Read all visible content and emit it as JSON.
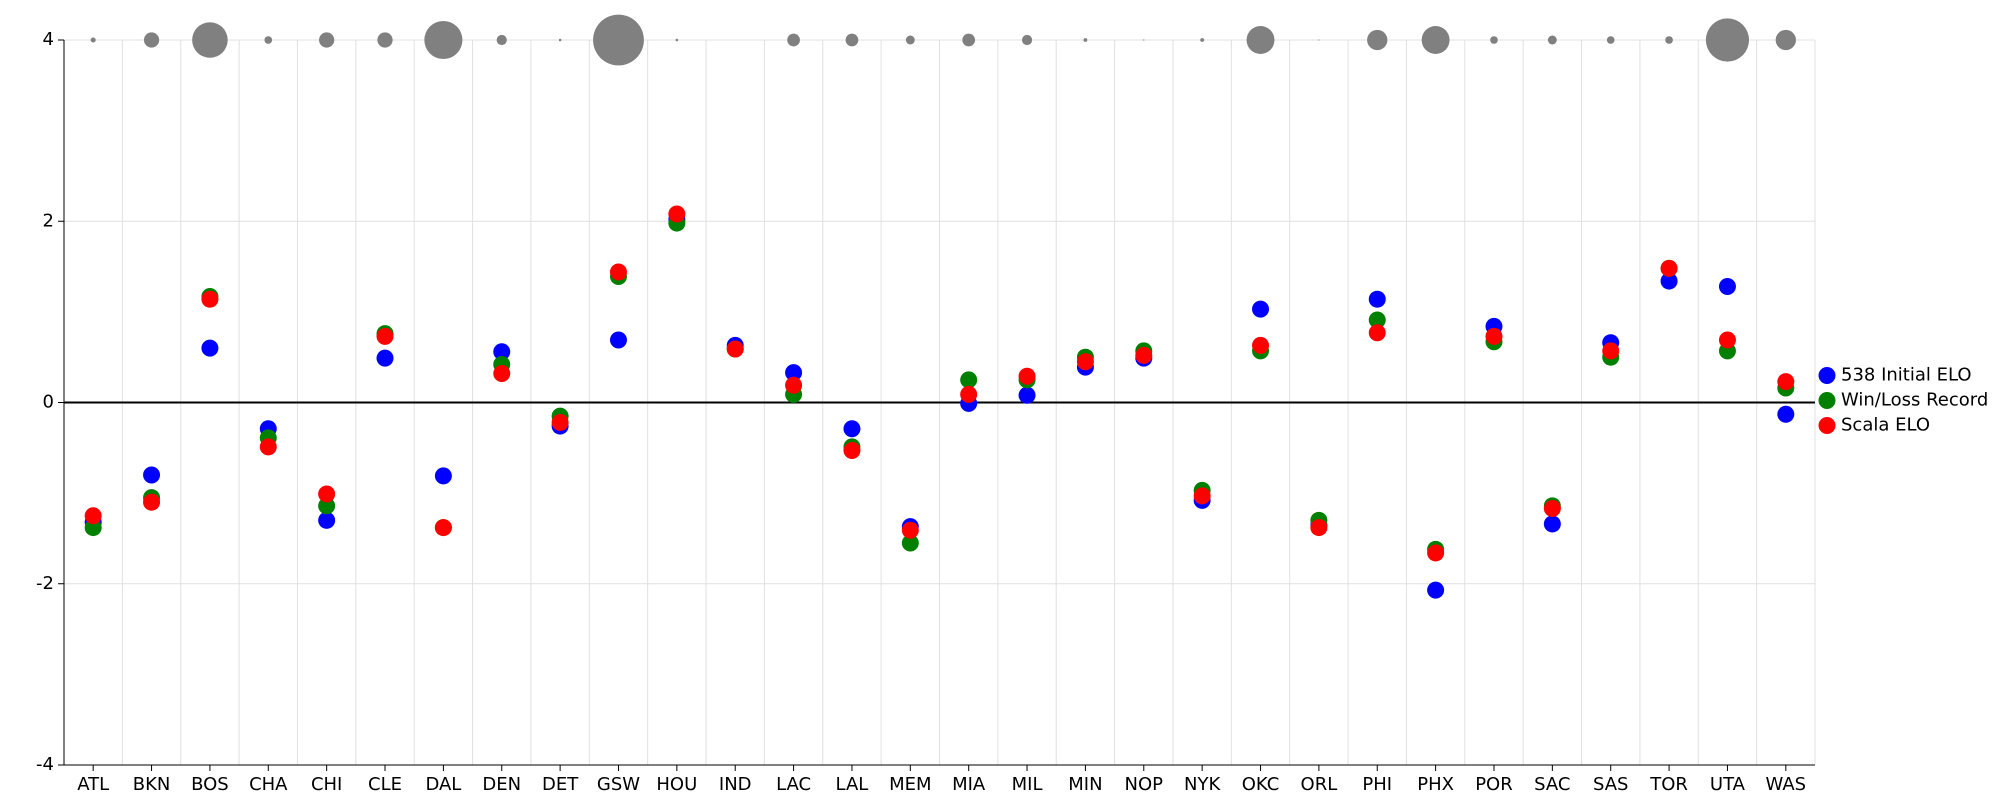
{
  "chart_data": {
    "type": "scatter",
    "categories": [
      "ATL",
      "BKN",
      "BOS",
      "CHA",
      "CHI",
      "CLE",
      "DAL",
      "DEN",
      "DET",
      "GSW",
      "HOU",
      "IND",
      "LAC",
      "LAL",
      "MEM",
      "MIA",
      "MIL",
      "MIN",
      "NOP",
      "NYK",
      "OKC",
      "ORL",
      "PHI",
      "PHX",
      "POR",
      "SAC",
      "SAS",
      "TOR",
      "UTA",
      "WAS"
    ],
    "series": [
      {
        "name": "538 Initial ELO",
        "color": "#0000ff",
        "values": [
          -1.32,
          -0.8,
          0.6,
          -0.29,
          -1.3,
          0.49,
          -0.81,
          0.56,
          -0.26,
          0.69,
          2.02,
          0.63,
          0.33,
          -0.29,
          -1.37,
          -0.01,
          0.08,
          0.39,
          0.49,
          -1.08,
          1.03,
          -1.35,
          1.14,
          -2.07,
          0.84,
          -1.34,
          0.66,
          1.34,
          1.28,
          -0.13
        ]
      },
      {
        "name": "Win/Loss Record",
        "color": "#008000",
        "values": [
          -1.38,
          -1.05,
          1.17,
          -0.39,
          -1.14,
          0.76,
          -1.38,
          0.42,
          -0.15,
          1.39,
          1.98,
          0.59,
          0.09,
          -0.49,
          -1.55,
          0.25,
          0.25,
          0.5,
          0.57,
          -0.97,
          0.57,
          -1.3,
          0.91,
          -1.62,
          0.67,
          -1.14,
          0.5,
          1.48,
          0.57,
          0.16
        ]
      },
      {
        "name": "Scala ELO",
        "color": "#ff0000",
        "values": [
          -1.25,
          -1.1,
          1.14,
          -0.49,
          -1.01,
          0.73,
          -1.38,
          0.32,
          -0.22,
          1.44,
          2.08,
          0.59,
          0.19,
          -0.53,
          -1.41,
          0.09,
          0.29,
          0.45,
          0.52,
          -1.03,
          0.63,
          -1.38,
          0.77,
          -1.66,
          0.73,
          -1.17,
          0.57,
          1.48,
          0.69,
          0.23
        ]
      }
    ],
    "bubble_color": "#808080",
    "bubble_sizes": [
      2,
      6,
      14,
      3,
      6,
      6,
      15,
      4,
      1,
      20,
      1,
      0,
      5,
      5,
      3.5,
      5,
      4,
      1.5,
      0.5,
      1.5,
      11,
      0.5,
      8,
      11,
      3,
      3.5,
      3,
      3,
      17,
      8
    ],
    "ylim": [
      -4,
      4
    ],
    "yticks": [
      -4,
      -2,
      0,
      2,
      4
    ],
    "grid": true,
    "legend": "right"
  }
}
